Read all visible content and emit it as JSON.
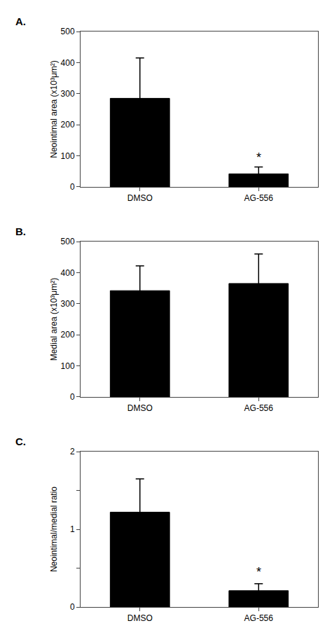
{
  "chart_data": [
    {
      "type": "bar",
      "title": "A.",
      "categories": [
        "DMSO",
        "AG-556"
      ],
      "values": [
        285,
        42
      ],
      "errors": [
        130,
        22
      ],
      "ylabel": "Neointimal area (x10³μm²)",
      "ylim": [
        0,
        500
      ],
      "yticks": [
        0,
        100,
        200,
        300,
        400,
        500
      ],
      "color": "#000000",
      "grid": false,
      "annotations": [
        {
          "text": "*",
          "x": 1,
          "y": 68
        }
      ]
    },
    {
      "type": "bar",
      "title": "B.",
      "categories": [
        "DMSO",
        "AG-556"
      ],
      "values": [
        342,
        365
      ],
      "errors": [
        80,
        95
      ],
      "ylabel": "Medial area (x10³μm²)",
      "ylim": [
        0,
        500
      ],
      "yticks": [
        0,
        100,
        200,
        300,
        400,
        500
      ],
      "color": "#000000",
      "grid": false,
      "annotations": []
    },
    {
      "type": "bar",
      "title": "C.",
      "categories": [
        "DMSO",
        "AG-556"
      ],
      "values": [
        1.22,
        0.21
      ],
      "errors": [
        0.43,
        0.09
      ],
      "ylabel": "Neointimal/medial ratio",
      "ylim": [
        0,
        2
      ],
      "yticks": [
        0,
        {
          "value": 0.5,
          "label": ""
        },
        1,
        {
          "value": 1.5,
          "label": ""
        },
        2
      ],
      "color": "#000000",
      "grid": false,
      "annotations": [
        {
          "text": "*",
          "x": 1,
          "y": 0.34
        }
      ]
    }
  ]
}
